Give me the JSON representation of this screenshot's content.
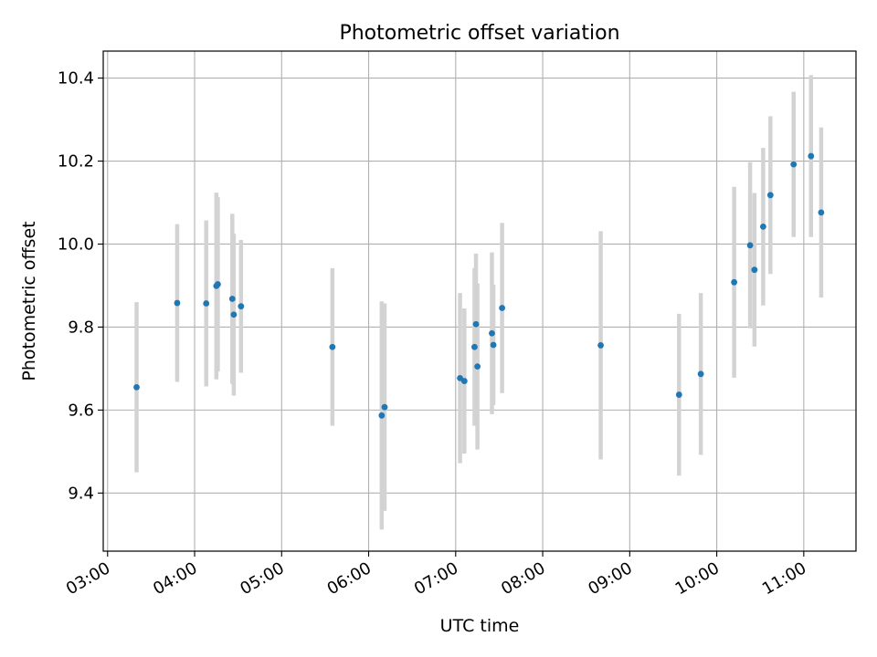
{
  "chart_data": {
    "type": "scatter",
    "title": "Photometric offset variation",
    "xlabel": "UTC time",
    "ylabel": "Photometric offset",
    "x_ticks": [
      "03:00",
      "04:00",
      "05:00",
      "06:00",
      "07:00",
      "08:00",
      "09:00",
      "10:00",
      "11:00"
    ],
    "y_ticks": [
      "9.4",
      "9.6",
      "9.8",
      "10.0",
      "10.2",
      "10.4"
    ],
    "xlim": [
      "02:57",
      "11:36"
    ],
    "ylim": [
      9.26,
      10.465
    ],
    "grid": true,
    "colors": {
      "points": "#1f77b4",
      "errorbars": "#d3d3d3",
      "grid": "#b0b0b0"
    },
    "series": [
      {
        "points": [
          {
            "x": "03:20",
            "y": 9.655,
            "err": 0.205
          },
          {
            "x": "03:48",
            "y": 9.858,
            "err": 0.19
          },
          {
            "x": "04:08",
            "y": 9.857,
            "err": 0.2
          },
          {
            "x": "04:15",
            "y": 9.899,
            "err": 0.225
          },
          {
            "x": "04:16",
            "y": 9.903,
            "err": 0.21
          },
          {
            "x": "04:26",
            "y": 9.868,
            "err": 0.205
          },
          {
            "x": "04:27",
            "y": 9.83,
            "err": 0.195
          },
          {
            "x": "04:32",
            "y": 9.85,
            "err": 0.16
          },
          {
            "x": "05:35",
            "y": 9.752,
            "err": 0.19
          },
          {
            "x": "06:09",
            "y": 9.587,
            "err": 0.275
          },
          {
            "x": "06:11",
            "y": 9.607,
            "err": 0.25
          },
          {
            "x": "07:03",
            "y": 9.677,
            "err": 0.205
          },
          {
            "x": "07:06",
            "y": 9.67,
            "err": 0.175
          },
          {
            "x": "07:13",
            "y": 9.752,
            "err": 0.19
          },
          {
            "x": "07:14",
            "y": 9.807,
            "err": 0.17
          },
          {
            "x": "07:15",
            "y": 9.705,
            "err": 0.2
          },
          {
            "x": "07:25",
            "y": 9.785,
            "err": 0.195
          },
          {
            "x": "07:26",
            "y": 9.757,
            "err": 0.145
          },
          {
            "x": "07:32",
            "y": 9.846,
            "err": 0.205
          },
          {
            "x": "08:40",
            "y": 9.756,
            "err": 0.275
          },
          {
            "x": "09:34",
            "y": 9.637,
            "err": 0.195
          },
          {
            "x": "09:49",
            "y": 9.687,
            "err": 0.195
          },
          {
            "x": "10:12",
            "y": 9.908,
            "err": 0.23
          },
          {
            "x": "10:23",
            "y": 9.997,
            "err": 0.2
          },
          {
            "x": "10:26",
            "y": 9.938,
            "err": 0.185
          },
          {
            "x": "10:32",
            "y": 10.042,
            "err": 0.19
          },
          {
            "x": "10:37",
            "y": 10.118,
            "err": 0.19
          },
          {
            "x": "10:53",
            "y": 10.192,
            "err": 0.175
          },
          {
            "x": "11:05",
            "y": 10.212,
            "err": 0.195
          },
          {
            "x": "11:12",
            "y": 10.076,
            "err": 0.205
          }
        ]
      }
    ]
  }
}
